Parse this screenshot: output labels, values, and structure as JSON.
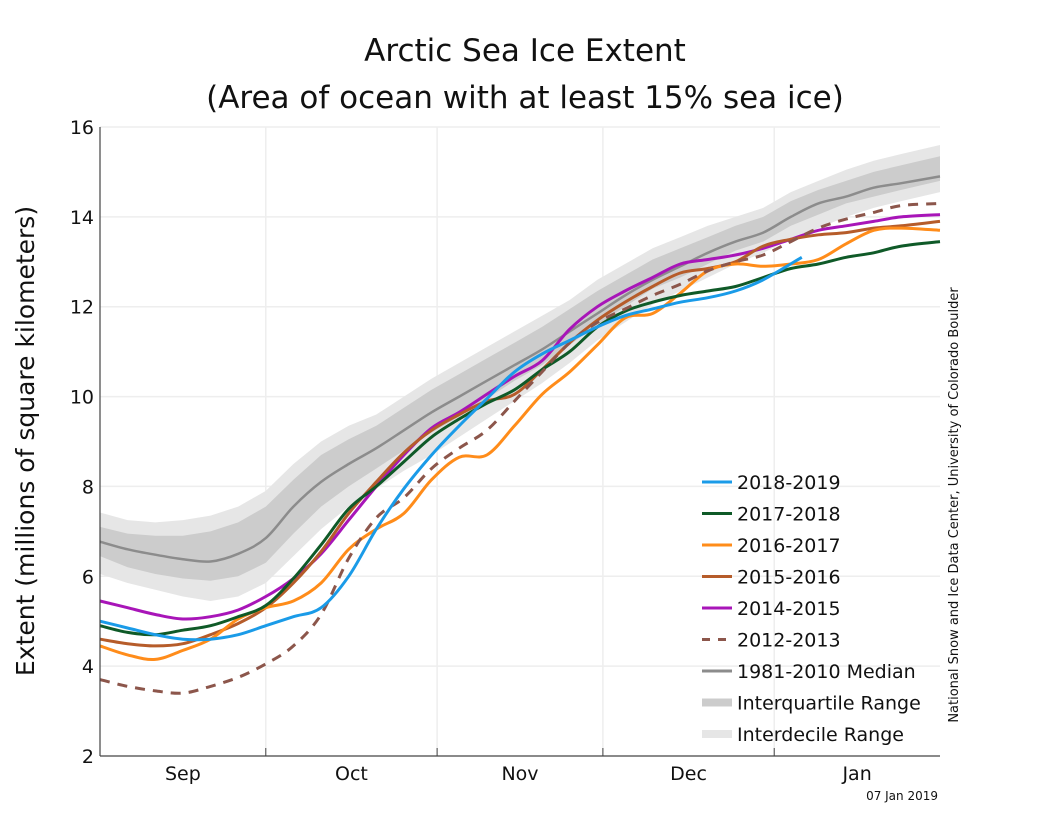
{
  "chart_data": {
    "type": "line",
    "title": "Arctic Sea Ice Extent",
    "subtitle": "(Area of ocean with at least 15% sea ice)",
    "xlabel": "",
    "ylabel": "Extent (millions of square kilometers)",
    "ylim": [
      2,
      16
    ],
    "yticks": [
      2,
      4,
      6,
      8,
      10,
      12,
      14,
      16
    ],
    "x_unit": "days since Sep 1",
    "xlim": [
      0,
      152
    ],
    "month_ticks": [
      {
        "label": "Sep",
        "start": 0,
        "end": 30
      },
      {
        "label": "Oct",
        "start": 30,
        "end": 61
      },
      {
        "label": "Nov",
        "start": 61,
        "end": 91
      },
      {
        "label": "Dec",
        "start": 91,
        "end": 122
      },
      {
        "label": "Jan",
        "start": 122,
        "end": 152
      }
    ],
    "grid": true,
    "legend_position": "bottom-right",
    "date_stamp": "07 Jan 2019",
    "credit": "National Snow and Ice Data Center, University of Colorado Boulder",
    "bands": [
      {
        "name": "Interdecile Range",
        "color": "#e6e6e6",
        "x": [
          0,
          5,
          10,
          15,
          20,
          25,
          30,
          35,
          40,
          45,
          50,
          55,
          60,
          65,
          70,
          75,
          80,
          85,
          90,
          95,
          100,
          105,
          110,
          115,
          120,
          125,
          130,
          135,
          140,
          145,
          152
        ],
        "upper": [
          7.42,
          7.25,
          7.2,
          7.25,
          7.35,
          7.55,
          7.9,
          8.5,
          9.0,
          9.35,
          9.6,
          10.0,
          10.4,
          10.75,
          11.1,
          11.45,
          11.8,
          12.15,
          12.6,
          12.95,
          13.3,
          13.55,
          13.8,
          14.0,
          14.2,
          14.55,
          14.8,
          15.05,
          15.25,
          15.4,
          15.6
        ],
        "lower": [
          6.05,
          5.85,
          5.7,
          5.55,
          5.45,
          5.55,
          5.85,
          6.45,
          7.05,
          7.55,
          7.95,
          8.35,
          8.7,
          9.1,
          9.5,
          9.9,
          10.3,
          10.75,
          11.25,
          11.65,
          12.05,
          12.35,
          12.65,
          12.95,
          13.2,
          13.5,
          13.75,
          14.0,
          14.2,
          14.35,
          14.55
        ]
      },
      {
        "name": "Interquartile Range",
        "color": "#cccccc",
        "x": [
          0,
          5,
          10,
          15,
          20,
          25,
          30,
          35,
          40,
          45,
          50,
          55,
          60,
          65,
          70,
          75,
          80,
          85,
          90,
          95,
          100,
          105,
          110,
          115,
          120,
          125,
          130,
          135,
          140,
          145,
          152
        ],
        "upper": [
          7.1,
          6.95,
          6.9,
          6.9,
          7.0,
          7.2,
          7.55,
          8.15,
          8.7,
          9.05,
          9.35,
          9.75,
          10.15,
          10.5,
          10.85,
          11.2,
          11.55,
          11.95,
          12.35,
          12.7,
          13.05,
          13.3,
          13.55,
          13.8,
          14.0,
          14.35,
          14.6,
          14.8,
          15.0,
          15.15,
          15.35
        ],
        "lower": [
          6.45,
          6.2,
          6.05,
          5.95,
          5.9,
          6.0,
          6.3,
          6.95,
          7.55,
          8.0,
          8.4,
          8.8,
          9.2,
          9.55,
          9.95,
          10.35,
          10.7,
          11.15,
          11.6,
          12.0,
          12.4,
          12.65,
          12.95,
          13.25,
          13.45,
          13.8,
          14.05,
          14.3,
          14.45,
          14.6,
          14.8
        ]
      }
    ],
    "series": [
      {
        "name": "1981-2010 Median",
        "color": "#8c8c8c",
        "dash": false,
        "x": [
          0,
          5,
          10,
          15,
          20,
          25,
          30,
          35,
          40,
          45,
          50,
          55,
          60,
          65,
          70,
          75,
          80,
          85,
          90,
          95,
          100,
          105,
          110,
          115,
          120,
          125,
          130,
          135,
          140,
          145,
          152
        ],
        "y": [
          6.77,
          6.6,
          6.48,
          6.38,
          6.33,
          6.5,
          6.85,
          7.55,
          8.1,
          8.5,
          8.85,
          9.25,
          9.65,
          10.0,
          10.35,
          10.7,
          11.05,
          11.45,
          11.85,
          12.25,
          12.6,
          12.9,
          13.2,
          13.45,
          13.65,
          14.0,
          14.3,
          14.45,
          14.65,
          14.75,
          14.9
        ]
      },
      {
        "name": "2014-2015",
        "color": "#a815b8",
        "dash": false,
        "x": [
          0,
          5,
          10,
          15,
          20,
          25,
          30,
          35,
          40,
          45,
          50,
          55,
          60,
          65,
          70,
          75,
          80,
          85,
          90,
          95,
          100,
          105,
          110,
          115,
          120,
          125,
          130,
          135,
          140,
          145,
          152
        ],
        "y": [
          5.45,
          5.3,
          5.15,
          5.05,
          5.1,
          5.25,
          5.55,
          5.95,
          6.5,
          7.25,
          8.0,
          8.7,
          9.3,
          9.65,
          10.05,
          10.45,
          10.8,
          11.5,
          12.0,
          12.35,
          12.65,
          12.95,
          13.05,
          13.15,
          13.3,
          13.5,
          13.7,
          13.8,
          13.9,
          14.0,
          14.05
        ]
      },
      {
        "name": "2015-2016",
        "color": "#b65c2a",
        "dash": false,
        "x": [
          0,
          5,
          10,
          15,
          20,
          25,
          30,
          35,
          40,
          45,
          50,
          55,
          60,
          65,
          70,
          75,
          80,
          85,
          90,
          95,
          100,
          105,
          110,
          115,
          120,
          125,
          130,
          135,
          140,
          145,
          152
        ],
        "y": [
          4.6,
          4.5,
          4.45,
          4.5,
          4.7,
          4.95,
          5.3,
          5.85,
          6.55,
          7.4,
          8.1,
          8.75,
          9.25,
          9.6,
          9.9,
          10.05,
          10.6,
          11.2,
          11.7,
          12.1,
          12.45,
          12.75,
          12.85,
          13.0,
          13.35,
          13.5,
          13.6,
          13.65,
          13.75,
          13.8,
          13.9
        ]
      },
      {
        "name": "2016-2017",
        "color": "#ff8c1a",
        "dash": false,
        "x": [
          0,
          5,
          10,
          15,
          20,
          25,
          30,
          35,
          40,
          45,
          50,
          55,
          60,
          65,
          70,
          75,
          80,
          85,
          90,
          95,
          100,
          105,
          110,
          115,
          120,
          125,
          130,
          135,
          140,
          145,
          152
        ],
        "y": [
          4.45,
          4.25,
          4.15,
          4.35,
          4.6,
          5.05,
          5.3,
          5.45,
          5.85,
          6.6,
          7.05,
          7.4,
          8.15,
          8.65,
          8.7,
          9.35,
          10.05,
          10.55,
          11.15,
          11.75,
          11.85,
          12.3,
          12.8,
          12.95,
          12.9,
          12.95,
          13.05,
          13.4,
          13.7,
          13.75,
          13.7
        ]
      },
      {
        "name": "2017-2018",
        "color": "#0f5a28",
        "dash": false,
        "x": [
          0,
          5,
          10,
          15,
          20,
          25,
          30,
          35,
          40,
          45,
          50,
          55,
          60,
          65,
          70,
          75,
          80,
          85,
          90,
          95,
          100,
          105,
          110,
          115,
          120,
          125,
          130,
          135,
          140,
          145,
          152
        ],
        "y": [
          4.9,
          4.75,
          4.7,
          4.8,
          4.9,
          5.1,
          5.35,
          5.95,
          6.7,
          7.5,
          8.0,
          8.55,
          9.1,
          9.5,
          9.85,
          10.15,
          10.6,
          11.0,
          11.55,
          11.9,
          12.1,
          12.25,
          12.35,
          12.45,
          12.65,
          12.85,
          12.95,
          13.1,
          13.2,
          13.35,
          13.45
        ]
      },
      {
        "name": "2012-2013",
        "color": "#8c564b",
        "dash": true,
        "x": [
          0,
          5,
          10,
          15,
          20,
          25,
          30,
          35,
          40,
          45,
          50,
          55,
          60,
          65,
          70,
          75,
          80,
          85,
          90,
          95,
          100,
          105,
          110,
          115,
          120,
          125,
          130,
          135,
          140,
          145,
          152
        ],
        "y": [
          3.7,
          3.55,
          3.45,
          3.4,
          3.55,
          3.75,
          4.05,
          4.45,
          5.15,
          6.4,
          7.3,
          7.75,
          8.4,
          8.85,
          9.25,
          9.9,
          10.55,
          11.2,
          11.65,
          11.95,
          12.25,
          12.5,
          12.8,
          13.0,
          13.15,
          13.45,
          13.75,
          13.95,
          14.1,
          14.25,
          14.3
        ]
      },
      {
        "name": "2018-2019",
        "color": "#1a9be8",
        "dash": false,
        "x": [
          0,
          5,
          10,
          15,
          20,
          25,
          30,
          35,
          40,
          45,
          50,
          55,
          60,
          65,
          70,
          75,
          80,
          85,
          90,
          95,
          100,
          105,
          110,
          115,
          120,
          127
        ],
        "y": [
          5.0,
          4.85,
          4.7,
          4.6,
          4.6,
          4.7,
          4.9,
          5.1,
          5.3,
          6.0,
          7.05,
          7.95,
          8.7,
          9.35,
          9.95,
          10.55,
          10.95,
          11.25,
          11.55,
          11.8,
          11.95,
          12.1,
          12.2,
          12.35,
          12.6,
          13.1
        ]
      }
    ],
    "legend": [
      {
        "label": "2018-2019",
        "color": "#1a9be8",
        "style": "line"
      },
      {
        "label": "2017-2018",
        "color": "#0f5a28",
        "style": "line"
      },
      {
        "label": "2016-2017",
        "color": "#ff8c1a",
        "style": "line"
      },
      {
        "label": "2015-2016",
        "color": "#b65c2a",
        "style": "line"
      },
      {
        "label": "2014-2015",
        "color": "#a815b8",
        "style": "line"
      },
      {
        "label": "2012-2013",
        "color": "#8c564b",
        "style": "dash"
      },
      {
        "label": "1981-2010 Median",
        "color": "#8c8c8c",
        "style": "line"
      },
      {
        "label": "Interquartile Range",
        "color": "#cccccc",
        "style": "band"
      },
      {
        "label": "Interdecile Range",
        "color": "#e6e6e6",
        "style": "band"
      }
    ]
  }
}
